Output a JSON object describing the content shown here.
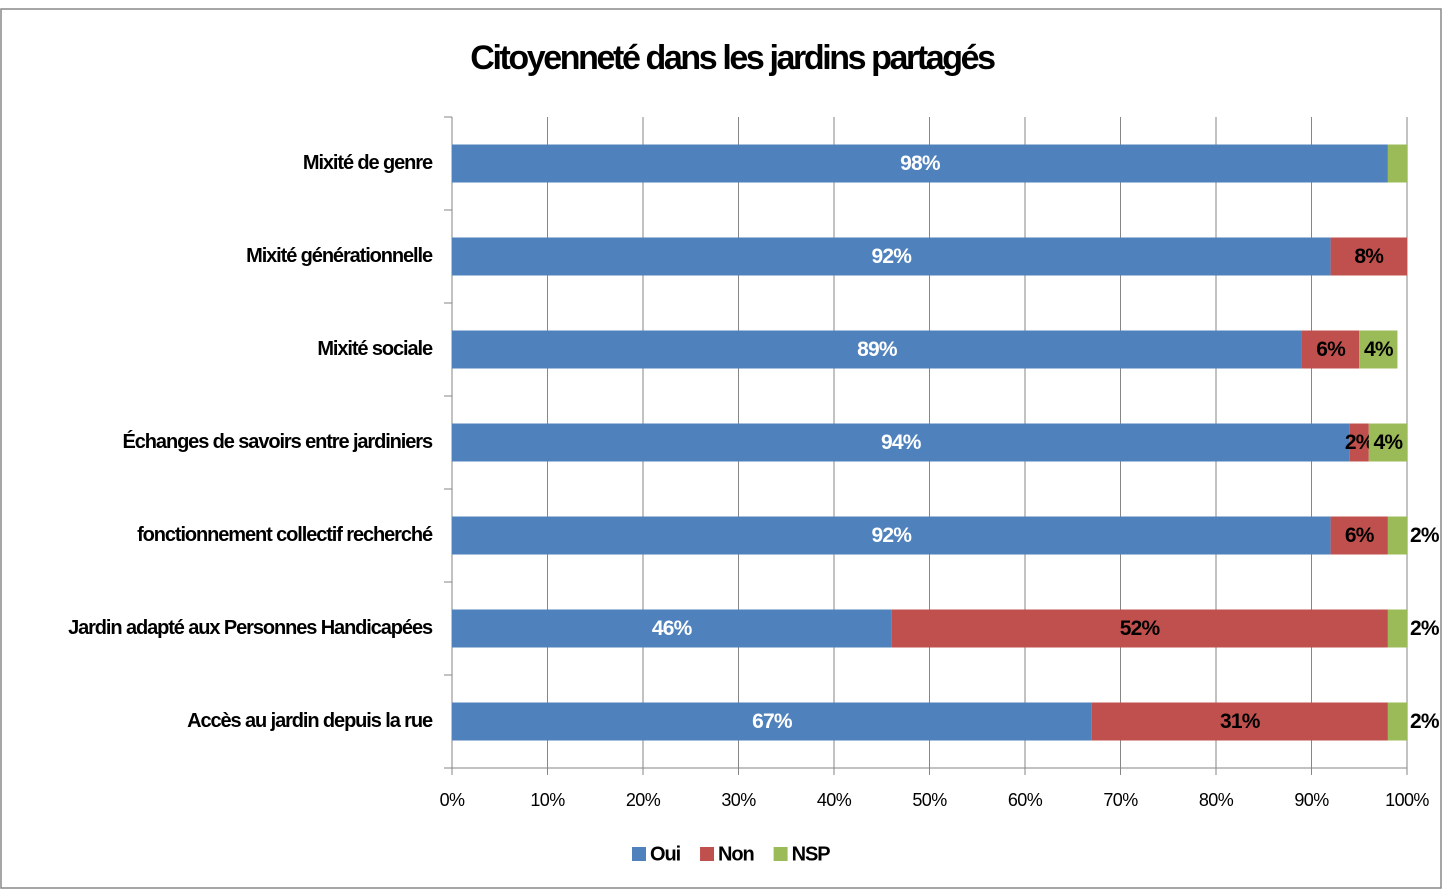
{
  "chart_data": {
    "type": "stacked_bar_horizontal",
    "title": "Citoyenneté dans les jardins partagés",
    "categories": [
      "Mixité de genre",
      "Mixité générationnelle",
      "Mixité sociale",
      "Échanges de savoirs entre jardiniers",
      "fonctionnement collectif recherché",
      "Jardin adapté aux Personnes Handicapées",
      "Accès au jardin depuis la rue"
    ],
    "series": [
      {
        "name": "Oui",
        "color": "#4f81bd",
        "values": [
          98,
          92,
          89,
          94,
          92,
          46,
          67
        ],
        "value_labels": [
          "98%",
          "92%",
          "89%",
          "94%",
          "92%",
          "46%",
          "67%"
        ]
      },
      {
        "name": "Non",
        "color": "#c0504d",
        "values": [
          0,
          8,
          6,
          2,
          6,
          52,
          31
        ],
        "value_labels": [
          null,
          "8%",
          "6%",
          "2%",
          "6%",
          "52%",
          "31%"
        ]
      },
      {
        "name": "NSP",
        "color": "#9bbb59",
        "values": [
          2,
          0,
          4,
          4,
          2,
          2,
          2
        ],
        "value_labels": [
          null,
          null,
          "4%",
          "4%",
          "2%",
          "2%",
          "2%"
        ]
      }
    ],
    "xlim": [
      0,
      100
    ],
    "xticks": [
      {
        "value": 0,
        "label": "0%"
      },
      {
        "value": 10,
        "label": "10%"
      },
      {
        "value": 20,
        "label": "20%"
      },
      {
        "value": 30,
        "label": "30%"
      },
      {
        "value": 40,
        "label": "40%"
      },
      {
        "value": 50,
        "label": "50%"
      },
      {
        "value": 60,
        "label": "60%"
      },
      {
        "value": 70,
        "label": "70%"
      },
      {
        "value": 80,
        "label": "80%"
      },
      {
        "value": 90,
        "label": "90%"
      },
      {
        "value": 100,
        "label": "100%"
      }
    ],
    "grid": true,
    "legend": "bottom"
  }
}
